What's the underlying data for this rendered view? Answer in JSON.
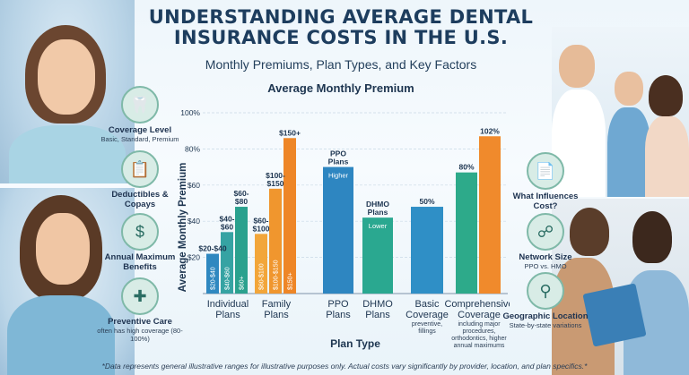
{
  "header": {
    "title_line1": "UNDERSTANDING AVERAGE DENTAL",
    "title_line2": "INSURANCE COSTS IN THE U.S.",
    "subtitle": "Monthly Premiums, Plan Types, and Key Factors"
  },
  "left_factors": [
    {
      "label": "Coverage Level",
      "sub": "Basic, Standard, Premium",
      "icon": "tooth-icon"
    },
    {
      "label": "Deductibles & Copays",
      "sub": "",
      "icon": "clipboard-icon"
    },
    {
      "label": "Annual Maximum Benefits",
      "sub": "",
      "icon": "money-icon"
    },
    {
      "label": "Preventive Care",
      "sub": "often has high coverage (80-100%)",
      "icon": "shield-tooth-icon"
    }
  ],
  "right_factors": [
    {
      "label": "What Influences Cost?",
      "sub": "",
      "icon": "certificate-icon"
    },
    {
      "label": "Network Size",
      "sub": "PPO vs. HMO",
      "icon": "network-icon"
    },
    {
      "label": "Geographic Location",
      "sub": "State-by-state variations",
      "icon": "location-icon"
    }
  ],
  "chart_data": {
    "type": "bar",
    "title": "Average Monthly Premium",
    "xlabel": "Plan Type",
    "ylabel": "Average Monthly Premium",
    "y_ticks": [
      "$20",
      "$40",
      "$60",
      "80%",
      "100%"
    ],
    "ylim": [
      0,
      100
    ],
    "groups": [
      {
        "label_line1": "Individual",
        "label_line2": "Plans"
      },
      {
        "label_line1": "Family",
        "label_line2": "Plans"
      },
      {
        "label_line1": "PPO",
        "label_line2": "Plans"
      },
      {
        "label_line1": "DHMO",
        "label_line2": "Plans"
      },
      {
        "label_line1": "Basic",
        "label_line2": "Coverage",
        "sub": "preventive, fillings"
      },
      {
        "label_line1": "Comprehensive",
        "label_line2": "Coverage",
        "sub": "including major procedures, orthodontics, higher annual maximums"
      }
    ],
    "bars": [
      {
        "group": 0,
        "value": 22,
        "label": "$20-$40",
        "label2": "",
        "inner": "$20-$40",
        "color": "#2f88c0"
      },
      {
        "group": 0,
        "value": 34,
        "label": "$40-",
        "label2": "$60",
        "inner": "$40-$60",
        "color": "#36a3a3"
      },
      {
        "group": 0,
        "value": 48,
        "label": "$60-",
        "label2": "$80",
        "inner": "$60+",
        "color": "#2aa18e"
      },
      {
        "group": 1,
        "value": 33,
        "label": "$60-",
        "label2": "$100",
        "inner": "$60-$100",
        "color": "#f2a63a"
      },
      {
        "group": 1,
        "value": 58,
        "label": "$100-",
        "label2": "$150",
        "inner": "$100-$150",
        "color": "#f0962e"
      },
      {
        "group": 1,
        "value": 86,
        "label": "$150+",
        "label2": "",
        "inner": "$150+",
        "color": "#ee8627"
      },
      {
        "group": 2,
        "value": 70,
        "label": "PPO",
        "label2": "Plans",
        "inner": "Higher",
        "color": "#2e86c1"
      },
      {
        "group": 3,
        "value": 42,
        "label": "DHMO",
        "label2": "Plans",
        "inner": "Lower",
        "color": "#2aa890"
      },
      {
        "group": 4,
        "value": 48,
        "label": "50%",
        "label2": "",
        "inner": "",
        "color": "#2f8fc6"
      },
      {
        "group": 5,
        "value": 67,
        "label": "80%",
        "label2": "",
        "inner": "",
        "color": "#2daa8a"
      },
      {
        "group": 5,
        "value": 87,
        "label": "102%",
        "label2": "",
        "inner": "",
        "color": "#f08a2c"
      }
    ]
  },
  "footer": "*Data represents general illustrative ranges for illustrative purposes only. Actual costs vary significantly by provider, location, and plan specifics.*"
}
